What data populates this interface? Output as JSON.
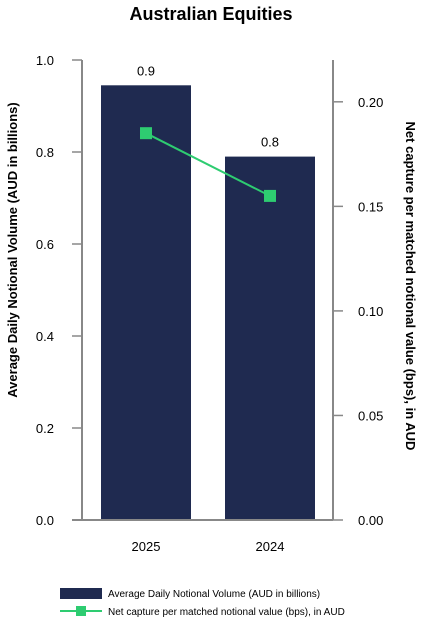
{
  "chart_data": {
    "type": "bar",
    "title": "Australian Equities",
    "categories": [
      "2025",
      "2024"
    ],
    "series": [
      {
        "name": "Average Daily Notional Volume (AUD in billions)",
        "type": "bar",
        "axis": "left",
        "values": [
          0.945,
          0.79
        ],
        "labels": [
          "0.9",
          "0.8"
        ],
        "color": "#1f2a50"
      },
      {
        "name": "Net capture per matched notional value (bps), in AUD",
        "type": "line",
        "axis": "right",
        "values": [
          0.185,
          0.155
        ],
        "color": "#2ecc71"
      }
    ],
    "ylabel_left": "Average Daily Notional Volume (AUD in billions)",
    "ylabel_right": "Net capture per matched notional value (bps), in AUD",
    "ylim_left": [
      0,
      1.0
    ],
    "ylim_right": [
      0,
      0.22
    ],
    "yticks_left": [
      "0.0",
      "0.2",
      "0.4",
      "0.6",
      "0.8",
      "1.0"
    ],
    "yticks_right": [
      "0.00",
      "0.05",
      "0.10",
      "0.15",
      "0.20"
    ],
    "legend_position": "bottom",
    "grid": false
  }
}
